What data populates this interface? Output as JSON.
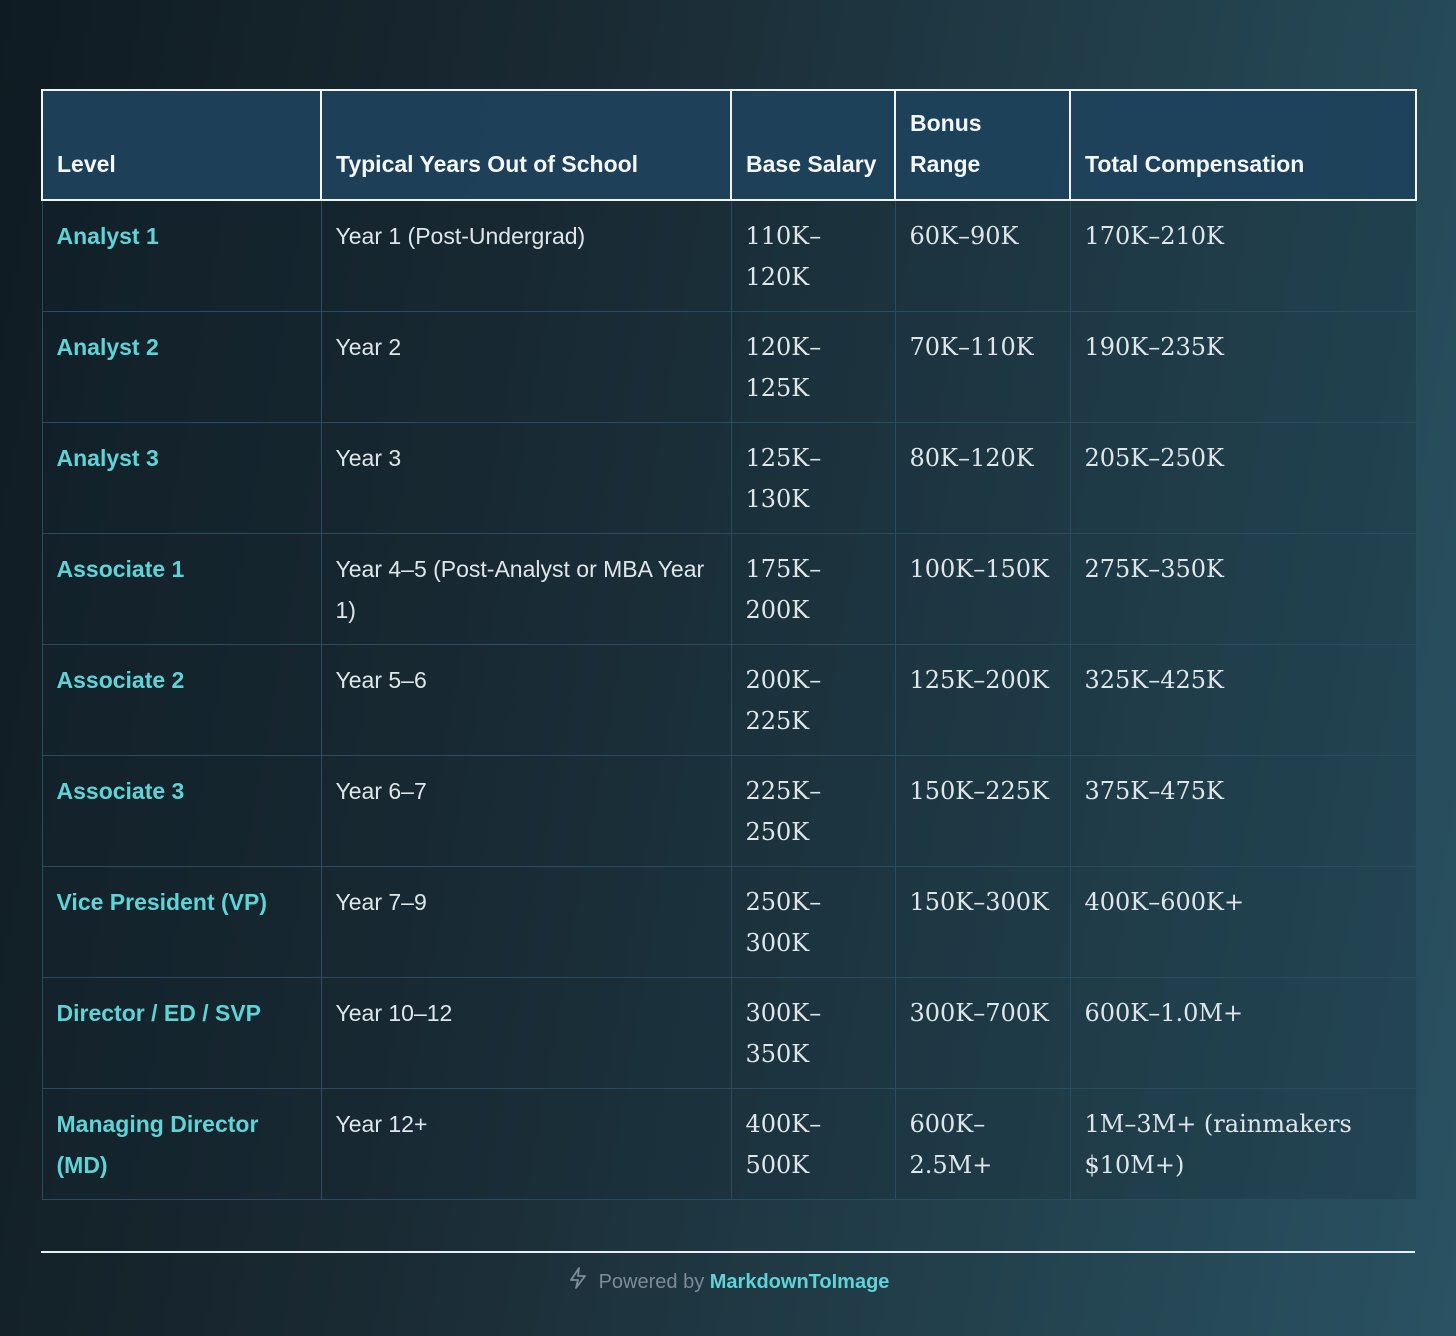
{
  "table": {
    "headers": [
      "Level",
      "Typical Years Out of School",
      "Base Salary",
      "Bonus Range",
      "Total Compensation"
    ],
    "rows": [
      {
        "level": "Analyst 1",
        "years": "Year 1 (Post-Undergrad)",
        "base": "110K–120K",
        "bonus": "60K–90K",
        "total": "170K–210K"
      },
      {
        "level": "Analyst 2",
        "years": "Year 2",
        "base": "120K–125K",
        "bonus": "70K–110K",
        "total": "190K–235K"
      },
      {
        "level": "Analyst 3",
        "years": "Year 3",
        "base": "125K–130K",
        "bonus": "80K–120K",
        "total": "205K–250K"
      },
      {
        "level": "Associate 1",
        "years": "Year 4–5 (Post-Analyst or MBA Year 1)",
        "base": "175K–200K",
        "bonus": "100K–150K",
        "total": "275K–350K"
      },
      {
        "level": "Associate 2",
        "years": "Year 5–6",
        "base": "200K–225K",
        "bonus": "125K–200K",
        "total": "325K–425K"
      },
      {
        "level": "Associate 3",
        "years": "Year 6–7",
        "base": "225K–250K",
        "bonus": "150K–225K",
        "total": "375K–475K"
      },
      {
        "level": "Vice President (VP)",
        "years": "Year 7–9",
        "base": "250K–300K",
        "bonus": "150K–300K",
        "total": "400K–600K+"
      },
      {
        "level": "Director / ED / SVP",
        "years": "Year 10–12",
        "base": "300K–350K",
        "bonus": "300K–700K",
        "total": "600K–1.0M+"
      },
      {
        "level": "Managing Director (MD)",
        "years": "Year 12+",
        "base": "400K–500K",
        "bonus": "600K–2.5M+",
        "total": "1M–3M+ (rainmakers $10M+)"
      }
    ]
  },
  "footer": {
    "prefix": "Powered by",
    "brand": "MarkdownToImage",
    "icon": "lightning-bolt-icon"
  }
}
